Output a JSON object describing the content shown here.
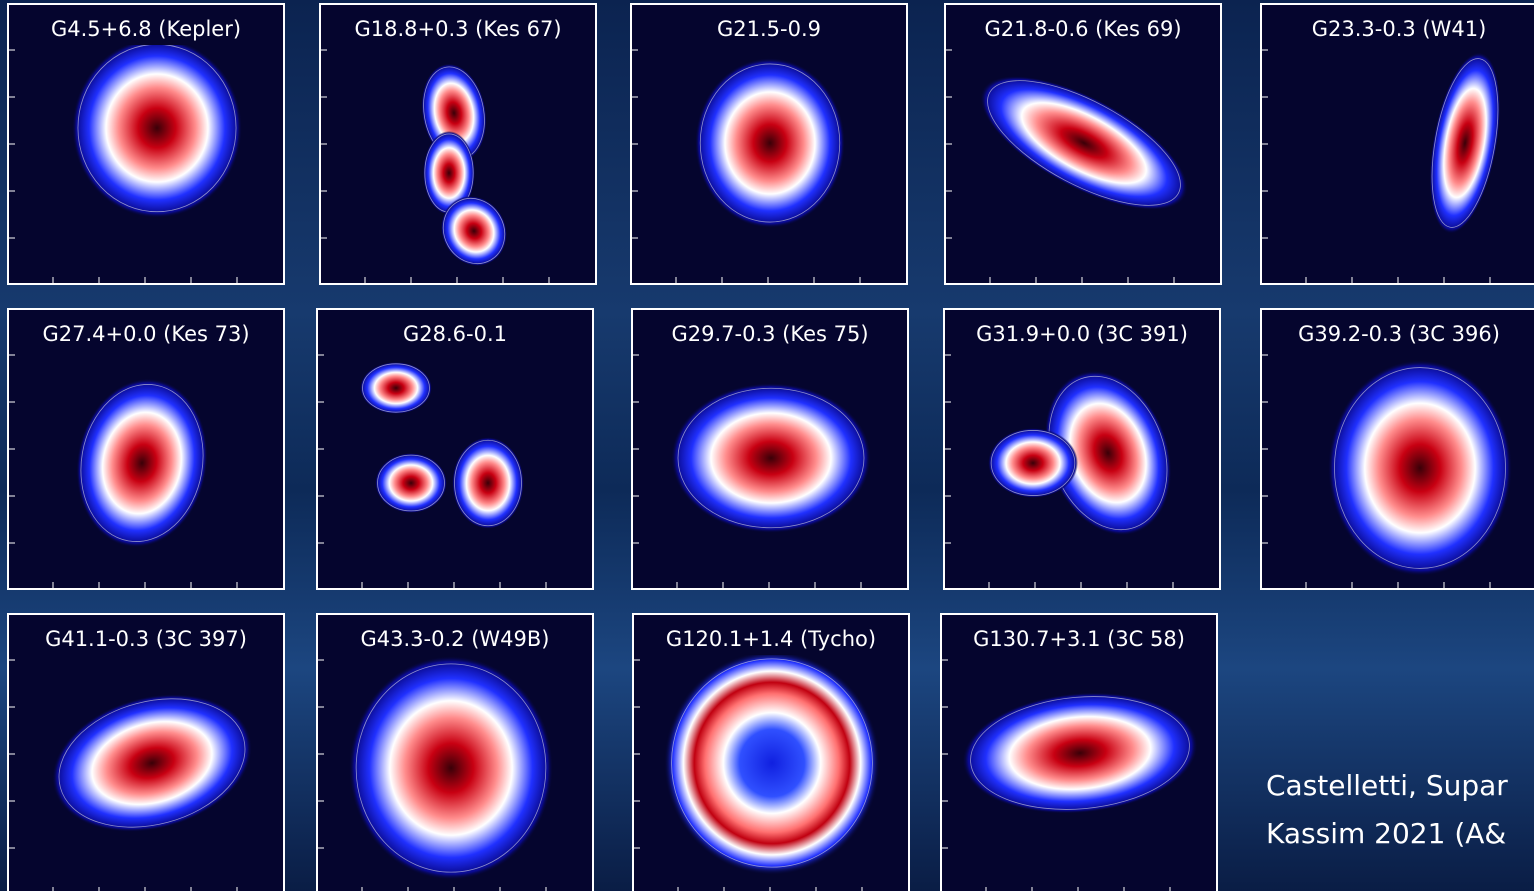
{
  "panels": [
    {
      "title": "G4.5+6.8 (Kepler)"
    },
    {
      "title": "G18.8+0.3 (Kes 67)"
    },
    {
      "title": "G21.5-0.9"
    },
    {
      "title": "G21.8-0.6 (Kes 69)"
    },
    {
      "title": "G23.3-0.3 (W41)"
    },
    {
      "title": "G27.4+0.0 (Kes 73)"
    },
    {
      "title": "G28.6-0.1"
    },
    {
      "title": "G29.7-0.3 (Kes 75)"
    },
    {
      "title": "G31.9+0.0 (3C 391)"
    },
    {
      "title": "G39.2-0.3 (3C 396)"
    },
    {
      "title": "G41.1-0.3 (3C 397)"
    },
    {
      "title": "G43.3-0.2 (W49B)"
    },
    {
      "title": "G120.1+1.4 (Tycho)"
    },
    {
      "title": "G130.7+3.1 (3C 58)"
    }
  ],
  "citation": [
    "Castelletti, Supar",
    "Kassim 2021 (A&"
  ]
}
